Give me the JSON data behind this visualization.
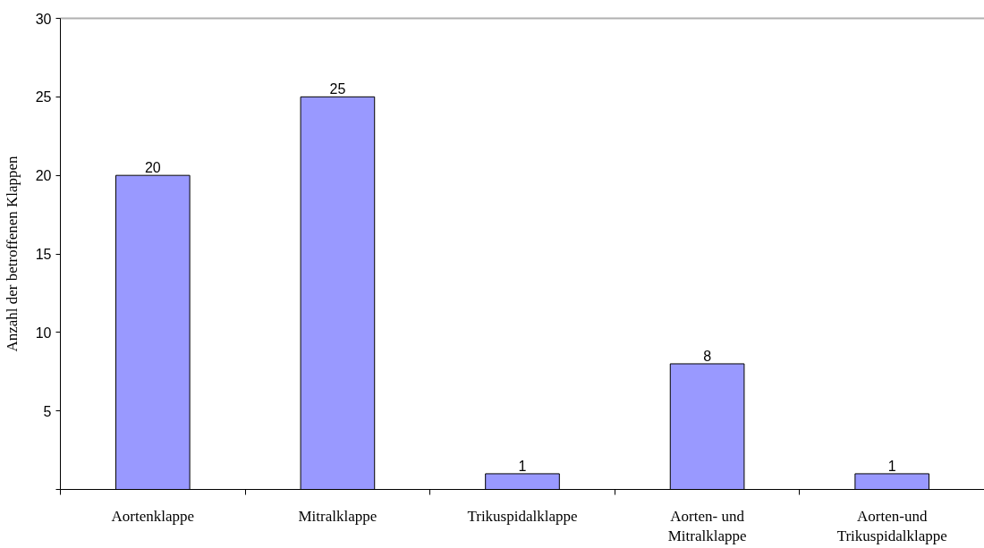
{
  "chart_data": {
    "type": "bar",
    "ylabel": "Anzahl der betroffenen Klappen",
    "categories": [
      "Aortenklappe",
      "Mitralklappe",
      "Trikuspidalklappe",
      "Aorten- und\nMitralklappe",
      "Aorten-und\nTrikuspidalklappe"
    ],
    "values": [
      20,
      25,
      1,
      8,
      1
    ],
    "color": "#9999ff",
    "ylim": [
      0,
      30
    ],
    "yticks": [
      {
        "value": 0,
        "label": null
      },
      5,
      10,
      15,
      20,
      25,
      30
    ],
    "data_labels": true,
    "grid": false
  }
}
